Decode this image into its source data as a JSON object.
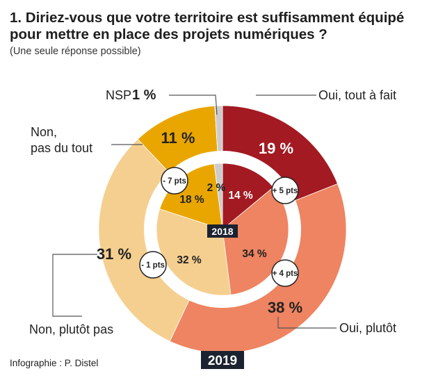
{
  "header": {
    "title": "1. Diriez-vous que votre territoire est suffisamment équipé pour mettre en place des projets numériques ?",
    "subtitle": "(Une seule réponse possible)"
  },
  "credit": "Infographie : P. Distel",
  "colors": {
    "oui_tout_a_fait": "#a31a22",
    "oui_plutot": "#ee8461",
    "non_plutot_pas": "#f5cf8f",
    "non_pas_du_tout": "#e9a600",
    "nsp": "#cccccc",
    "year_badge": "#1c2230"
  },
  "chart_data": {
    "type": "pie",
    "title": "Diriez-vous que votre territoire est suffisamment équipé pour mettre en place des projets numériques ?",
    "categories": [
      "Oui, tout à fait",
      "Oui, plutôt",
      "Non, plutôt pas",
      "Non, pas du tout",
      "NSP"
    ],
    "category_display": {
      "oui_tout_a_fait": "Oui, tout à fait",
      "oui_plutot": "Oui, plutôt",
      "non_plutot_pas": "Non, plutôt pas",
      "non_pas_du_tout_line1": "Non,",
      "non_pas_du_tout_line2": "pas du tout",
      "nsp": "NSP"
    },
    "series": [
      {
        "name": "2019",
        "values": [
          19,
          38,
          31,
          11,
          1
        ],
        "labels": [
          "19 %",
          "38 %",
          "31 %",
          "11 %",
          "1 %"
        ]
      },
      {
        "name": "2018",
        "values": [
          14,
          34,
          32,
          18,
          2
        ],
        "labels": [
          "14 %",
          "34 %",
          "32 %",
          "18 %",
          "2 %"
        ]
      }
    ],
    "changes": [
      "+ 5 pts",
      "+ 4 pts",
      "- 1 pts",
      "- 7 pts"
    ],
    "unit": "%"
  }
}
